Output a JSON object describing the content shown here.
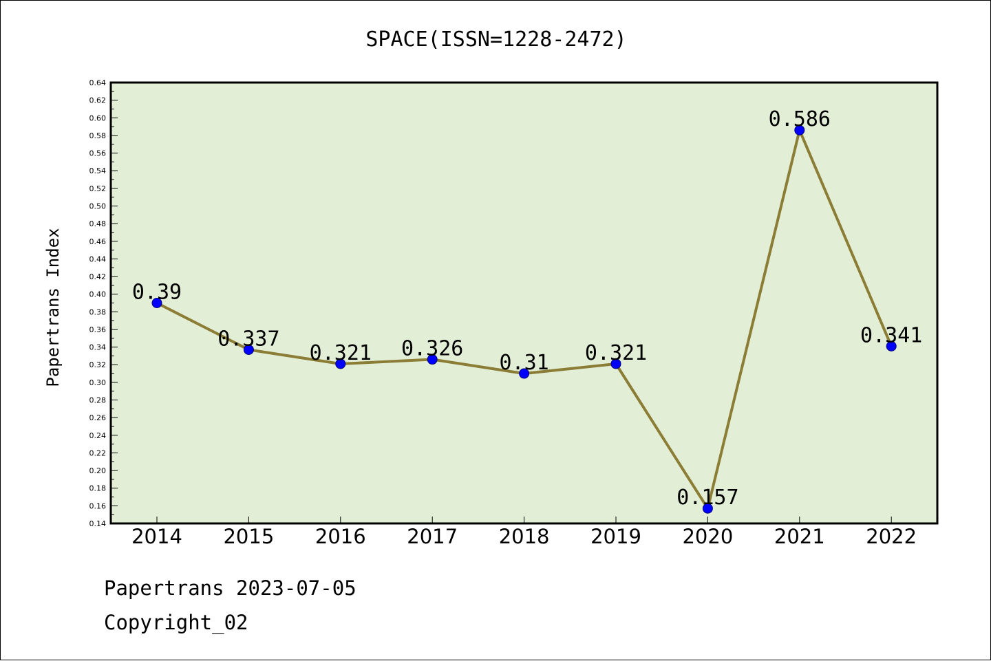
{
  "chart_data": {
    "type": "line",
    "title": "SPACE(ISSN=1228-2472)",
    "xlabel": "",
    "ylabel": "Papertrans Index",
    "categories": [
      "2014",
      "2015",
      "2016",
      "2017",
      "2018",
      "2019",
      "2020",
      "2021",
      "2022"
    ],
    "series": [
      {
        "values": [
          0.39,
          0.337,
          0.321,
          0.326,
          0.31,
          0.321,
          0.157,
          0.586,
          0.341
        ],
        "labels": [
          "0.39",
          "0.337",
          "0.321",
          "0.326",
          "0.31",
          "0.321",
          "0.157",
          "0.586",
          "0.341"
        ]
      }
    ],
    "ylim": [
      0.14,
      0.64
    ],
    "ytick_step": 0.02,
    "grid": false,
    "legend": "none"
  },
  "colors": {
    "plot_background": "#e2efd6",
    "line": "#8b7d35",
    "marker": "#0000ff",
    "marker_edge": "#00007a"
  },
  "footer": {
    "line1": "Papertrans 2023-07-05",
    "line2": "Copyright_02"
  }
}
